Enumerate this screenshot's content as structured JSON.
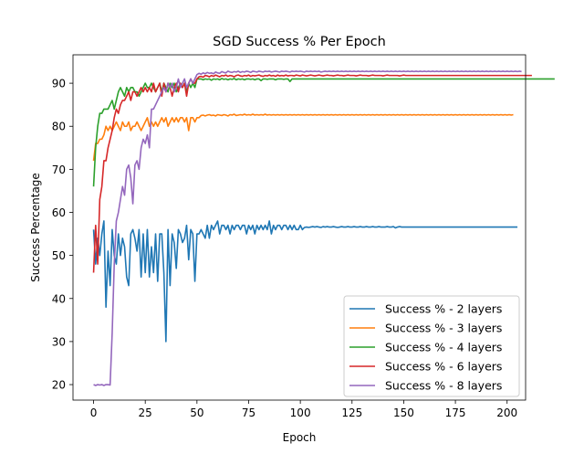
{
  "chart_data": {
    "type": "line",
    "title": "SGD Success % Per Epoch",
    "xlabel": "Epoch",
    "ylabel": "Success Percentage",
    "xlim": [
      -9.95,
      208.95
    ],
    "ylim": [
      16.4,
      96.6
    ],
    "xticks": [
      0,
      25,
      50,
      75,
      100,
      125,
      150,
      175,
      200
    ],
    "yticks": [
      20,
      30,
      40,
      50,
      60,
      70,
      80,
      90
    ],
    "grid": false,
    "legend_position": "lower-right",
    "series": [
      {
        "name": "Success % - 2 layers",
        "color": "#1f77b4",
        "values": [
          56,
          48,
          54,
          50,
          55,
          58,
          38,
          51,
          43,
          56,
          50,
          48,
          55,
          50,
          54,
          52,
          45,
          43,
          55,
          56,
          54,
          51,
          56,
          45,
          55,
          46,
          56,
          45,
          52,
          46,
          55,
          44,
          55,
          55,
          46,
          30,
          56,
          43,
          55,
          53,
          47,
          56,
          55,
          53,
          54,
          57,
          49,
          56,
          55,
          44,
          55,
          55,
          56,
          55,
          54,
          57,
          54,
          57,
          56,
          57,
          58,
          55,
          57,
          57,
          56,
          57,
          55,
          57,
          56,
          57,
          57,
          56,
          57,
          57,
          55,
          57,
          56,
          57,
          55,
          57,
          56,
          57,
          56,
          57,
          56,
          58,
          55,
          57,
          56,
          57,
          57,
          56,
          57,
          57,
          56,
          57,
          56,
          57,
          56,
          56,
          57,
          56,
          56.5,
          56.6,
          56.5,
          56.6,
          56.7,
          56.6,
          56.7,
          56.6,
          56.5,
          56.7,
          56.6,
          56.7,
          56.6,
          56.6,
          56.7,
          56.6,
          56.5,
          56.6,
          56.7,
          56.6,
          56.6,
          56.7,
          56.6,
          56.6,
          56.7,
          56.6,
          56.6,
          56.7,
          56.6,
          56.6,
          56.7,
          56.6,
          56.6,
          56.7,
          56.6,
          56.6,
          56.7,
          56.6,
          56.6,
          56.6,
          56.7,
          56.6,
          56.6,
          56.7,
          56.4,
          56.6,
          56.7,
          56.6,
          56.6,
          56.6,
          56.6,
          56.6,
          56.6,
          56.6,
          56.6,
          56.6,
          56.6,
          56.6,
          56.6,
          56.6,
          56.6,
          56.6,
          56.6,
          56.6,
          56.6,
          56.6,
          56.6,
          56.6,
          56.6,
          56.6,
          56.6,
          56.6,
          56.6,
          56.6,
          56.6,
          56.6,
          56.6,
          56.6,
          56.6,
          56.6,
          56.6,
          56.6,
          56.6,
          56.6,
          56.6,
          56.6,
          56.6,
          56.6,
          56.6,
          56.6,
          56.6,
          56.6,
          56.6,
          56.6,
          56.6,
          56.6,
          56.6,
          56.6,
          56.6,
          56.6,
          56.6,
          56.6,
          56.6,
          56.6
        ]
      },
      {
        "name": "Success % - 3 layers",
        "color": "#ff7f0e",
        "values": [
          72,
          76,
          76,
          77,
          77,
          78,
          80,
          79,
          80,
          79,
          80,
          81,
          80,
          79,
          81,
          80,
          80,
          81,
          79,
          80,
          80,
          81,
          80,
          79,
          80,
          81,
          82,
          80,
          81,
          80,
          81,
          80,
          81,
          82,
          81,
          82,
          80,
          81,
          82,
          81,
          82,
          81,
          82,
          82,
          81,
          82,
          79,
          82,
          82,
          81,
          82,
          82,
          82.5,
          82.6,
          82.4,
          82.6,
          82.7,
          82.5,
          82.6,
          82.4,
          82.7,
          82.6,
          82.5,
          82.7,
          82.6,
          82.4,
          82.7,
          82.6,
          82.8,
          82.5,
          82.6,
          82.7,
          82.6,
          82.8,
          82.6,
          82.7,
          82.6,
          82.8,
          82.6,
          82.7,
          82.6,
          82.7,
          82.6,
          82.8,
          82.6,
          82.7,
          82.6,
          82.7,
          82.6,
          82.7,
          82.6,
          82.7,
          82.6,
          82.7,
          82.6,
          82.7,
          82.6,
          82.7,
          82.6,
          82.7,
          82.6,
          82.7,
          82.6,
          82.7,
          82.6,
          82.7,
          82.6,
          82.7,
          82.6,
          82.7,
          82.6,
          82.7,
          82.6,
          82.7,
          82.6,
          82.7,
          82.6,
          82.7,
          82.6,
          82.7,
          82.6,
          82.7,
          82.6,
          82.7,
          82.6,
          82.7,
          82.6,
          82.7,
          82.6,
          82.7,
          82.6,
          82.7,
          82.6,
          82.7,
          82.6,
          82.7,
          82.6,
          82.7,
          82.6,
          82.7,
          82.6,
          82.7,
          82.6,
          82.7,
          82.6,
          82.7,
          82.6,
          82.7,
          82.6,
          82.7,
          82.6,
          82.7,
          82.6,
          82.7,
          82.6,
          82.7,
          82.6,
          82.7,
          82.6,
          82.7,
          82.6,
          82.7,
          82.6,
          82.7,
          82.6,
          82.7,
          82.6,
          82.7,
          82.6,
          82.7,
          82.6,
          82.7,
          82.6,
          82.7,
          82.6,
          82.7,
          82.6,
          82.7,
          82.6,
          82.7,
          82.6,
          82.7,
          82.6,
          82.7,
          82.6,
          82.7,
          82.6,
          82.7,
          82.6,
          82.7,
          82.6,
          82.7,
          82.6,
          82.7,
          82.6,
          82.7,
          82.6,
          82.7,
          82.6,
          82.7,
          82.6,
          82.7,
          82.6,
          82.7
        ]
      },
      {
        "name": "Success % - 4 layers",
        "color": "#2ca02c",
        "values": [
          66,
          75,
          80,
          83,
          83,
          84,
          84,
          84,
          85,
          86,
          84,
          86,
          88,
          89,
          88,
          87,
          89,
          88,
          89,
          89,
          88,
          88,
          87,
          88,
          89,
          90,
          89,
          89,
          90,
          89,
          88,
          89,
          90,
          88,
          90,
          89,
          88,
          90,
          89,
          90,
          88,
          89,
          90,
          89,
          90,
          88,
          90,
          89,
          90,
          89,
          91,
          91,
          91,
          90.8,
          91,
          90.9,
          91,
          90.7,
          91,
          90.9,
          91,
          90.8,
          91.1,
          90.9,
          91,
          90.8,
          91,
          90.9,
          91.1,
          90.8,
          91,
          90.9,
          91,
          90.8,
          91,
          91,
          90.9,
          91,
          90.8,
          91,
          91,
          90.6,
          91,
          91,
          90.9,
          91,
          91,
          91,
          90.8,
          91,
          91,
          91,
          90.9,
          91,
          91,
          90.4,
          91,
          91,
          91,
          91,
          91,
          91,
          91,
          91,
          91,
          91,
          91,
          91,
          91,
          91,
          91,
          91,
          91,
          91,
          91,
          91,
          91,
          91,
          91,
          91,
          91,
          91,
          91,
          91,
          91,
          91,
          91,
          91,
          91,
          91,
          91,
          91,
          91,
          91,
          91,
          91,
          91,
          91,
          91,
          91,
          91,
          91,
          91,
          91,
          91,
          91,
          91,
          91,
          91,
          91,
          91,
          91,
          91,
          91,
          91,
          91,
          91,
          91,
          91,
          91,
          91,
          91,
          91,
          91,
          91,
          91,
          91,
          91,
          91,
          91,
          91,
          91,
          91,
          91,
          91,
          91,
          91,
          91,
          91,
          91,
          91,
          91,
          91,
          91,
          91,
          91,
          91,
          91,
          91,
          91,
          91,
          91,
          91,
          91,
          91,
          91,
          91,
          91,
          91,
          91,
          91,
          91,
          91,
          91,
          91,
          91,
          91,
          91,
          91,
          91,
          91,
          91,
          91,
          91,
          91,
          91,
          91,
          91,
          91,
          91,
          91,
          91,
          91,
          91
        ]
      },
      {
        "name": "Success % - 6 layers",
        "color": "#d62728",
        "values": [
          46,
          57,
          48,
          63,
          66,
          72,
          72,
          75,
          77,
          79,
          82,
          84,
          83,
          85,
          86,
          86,
          87,
          88,
          86,
          88,
          88,
          87,
          88,
          89,
          88,
          89,
          88,
          89,
          88,
          90,
          88,
          89,
          90,
          87,
          90,
          88,
          90,
          89,
          87,
          89,
          90,
          88,
          90,
          89,
          90,
          87,
          90,
          91,
          90,
          90,
          91,
          91.5,
          91.6,
          91.4,
          91.8,
          91.7,
          91.5,
          91.8,
          91.6,
          91.9,
          91.7,
          91.5,
          91.8,
          91.7,
          91.9,
          91.6,
          91.8,
          91.7,
          91.5,
          91.8,
          91.9,
          91.7,
          91.6,
          91.8,
          91.7,
          91.9,
          91.6,
          91.8,
          91.7,
          91.8,
          91.9,
          91.7,
          91.6,
          91.8,
          91.7,
          91.9,
          91.7,
          91.8,
          91.6,
          91.9,
          91.7,
          91.8,
          91.7,
          91.9,
          91.7,
          91.8,
          91.8,
          91.7,
          91.9,
          91.8,
          91.7,
          91.9,
          91.8,
          91.7,
          91.8,
          91.9,
          91.8,
          91.7,
          91.8,
          91.9,
          91.8,
          91.7,
          91.8,
          91.9,
          91.8,
          91.8,
          91.7,
          91.8,
          91.9,
          91.8,
          91.8,
          91.7,
          91.8,
          91.9,
          91.8,
          91.8,
          91.8,
          91.7,
          91.8,
          91.9,
          91.8,
          91.8,
          91.8,
          91.7,
          91.8,
          91.9,
          91.8,
          91.8,
          91.8,
          91.8,
          91.7,
          91.8,
          91.9,
          91.8,
          91.8,
          91.8,
          91.8,
          91.8,
          91.7,
          91.8,
          91.9,
          91.8,
          91.8,
          91.8,
          91.8,
          91.8,
          91.8,
          91.8,
          91.8,
          91.8,
          91.8,
          91.8,
          91.8,
          91.8,
          91.8,
          91.8,
          91.8,
          91.8,
          91.8,
          91.8,
          91.8,
          91.8,
          91.8,
          91.8,
          91.8,
          91.8,
          91.8,
          91.8,
          91.8,
          91.8,
          91.8,
          91.8,
          91.8,
          91.8,
          91.8,
          91.8,
          91.8,
          91.8,
          91.8,
          91.8,
          91.8,
          91.8,
          91.8,
          91.8,
          91.8,
          91.8,
          91.8,
          91.8,
          91.8,
          91.8,
          91.8,
          91.8,
          91.8,
          91.8,
          91.8,
          91.8,
          91.8,
          91.8,
          91.8,
          91.8,
          91.8,
          91.8,
          91.8
        ]
      },
      {
        "name": "Success % - 8 layers",
        "color": "#9467bd",
        "values": [
          20,
          19.8,
          20,
          19.9,
          20,
          19.8,
          20,
          20,
          19.9,
          32,
          48,
          58,
          60,
          63,
          66,
          64,
          70,
          71,
          68,
          62,
          71,
          72,
          70,
          75,
          77,
          76,
          78,
          75,
          84,
          84,
          85,
          86,
          87,
          88,
          89,
          88,
          90,
          89,
          90,
          88,
          89,
          91,
          89,
          90,
          91,
          89,
          90,
          91,
          90,
          91,
          92,
          92.3,
          92.1,
          92.4,
          92.2,
          92.5,
          92.3,
          92.4,
          92.2,
          92.6,
          92.4,
          92.3,
          92.7,
          92.5,
          92.4,
          92.8,
          92.6,
          92.5,
          92.7,
          92.6,
          92.8,
          92.5,
          92.7,
          92.6,
          92.8,
          92.7,
          92.5,
          92.8,
          92.7,
          92.6,
          92.8,
          92.7,
          92.6,
          92.8,
          92.7,
          92.8,
          92.6,
          92.7,
          92.8,
          92.7,
          92.6,
          92.8,
          92.7,
          92.8,
          92.7,
          92.6,
          92.8,
          92.7,
          92.8,
          92.7,
          92.8,
          92.7,
          92.6,
          92.8,
          92.7,
          92.8,
          92.7,
          92.8,
          92.7,
          92.8,
          92.6,
          92.7,
          92.8,
          92.7,
          92.8,
          92.7,
          92.8,
          92.7,
          92.8,
          92.7,
          92.8,
          92.7,
          92.8,
          92.7,
          92.8,
          92.7,
          92.8,
          92.7,
          92.8,
          92.7,
          92.8,
          92.7,
          92.8,
          92.7,
          92.8,
          92.7,
          92.8,
          92.7,
          92.8,
          92.7,
          92.8,
          92.7,
          92.8,
          92.7,
          92.8,
          92.7,
          92.8,
          92.7,
          92.8,
          92.7,
          92.8,
          92.7,
          92.8,
          92.7,
          92.8,
          92.7,
          92.8,
          92.7,
          92.8,
          92.7,
          92.8,
          92.7,
          92.8,
          92.7,
          92.8,
          92.7,
          92.8,
          92.7,
          92.8,
          92.7,
          92.8,
          92.7,
          92.8,
          92.7,
          92.8,
          92.7,
          92.8,
          92.7,
          92.8,
          92.7,
          92.8,
          92.7,
          92.8,
          92.7,
          92.8,
          92.7,
          92.8,
          92.7,
          92.8,
          92.7,
          92.8,
          92.7,
          92.8,
          92.7,
          92.8,
          92.7,
          92.8,
          92.7,
          92.8,
          92.7,
          92.8,
          92.7,
          92.8,
          92.7,
          92.8,
          92.7,
          92.8,
          92.7
        ]
      }
    ]
  }
}
